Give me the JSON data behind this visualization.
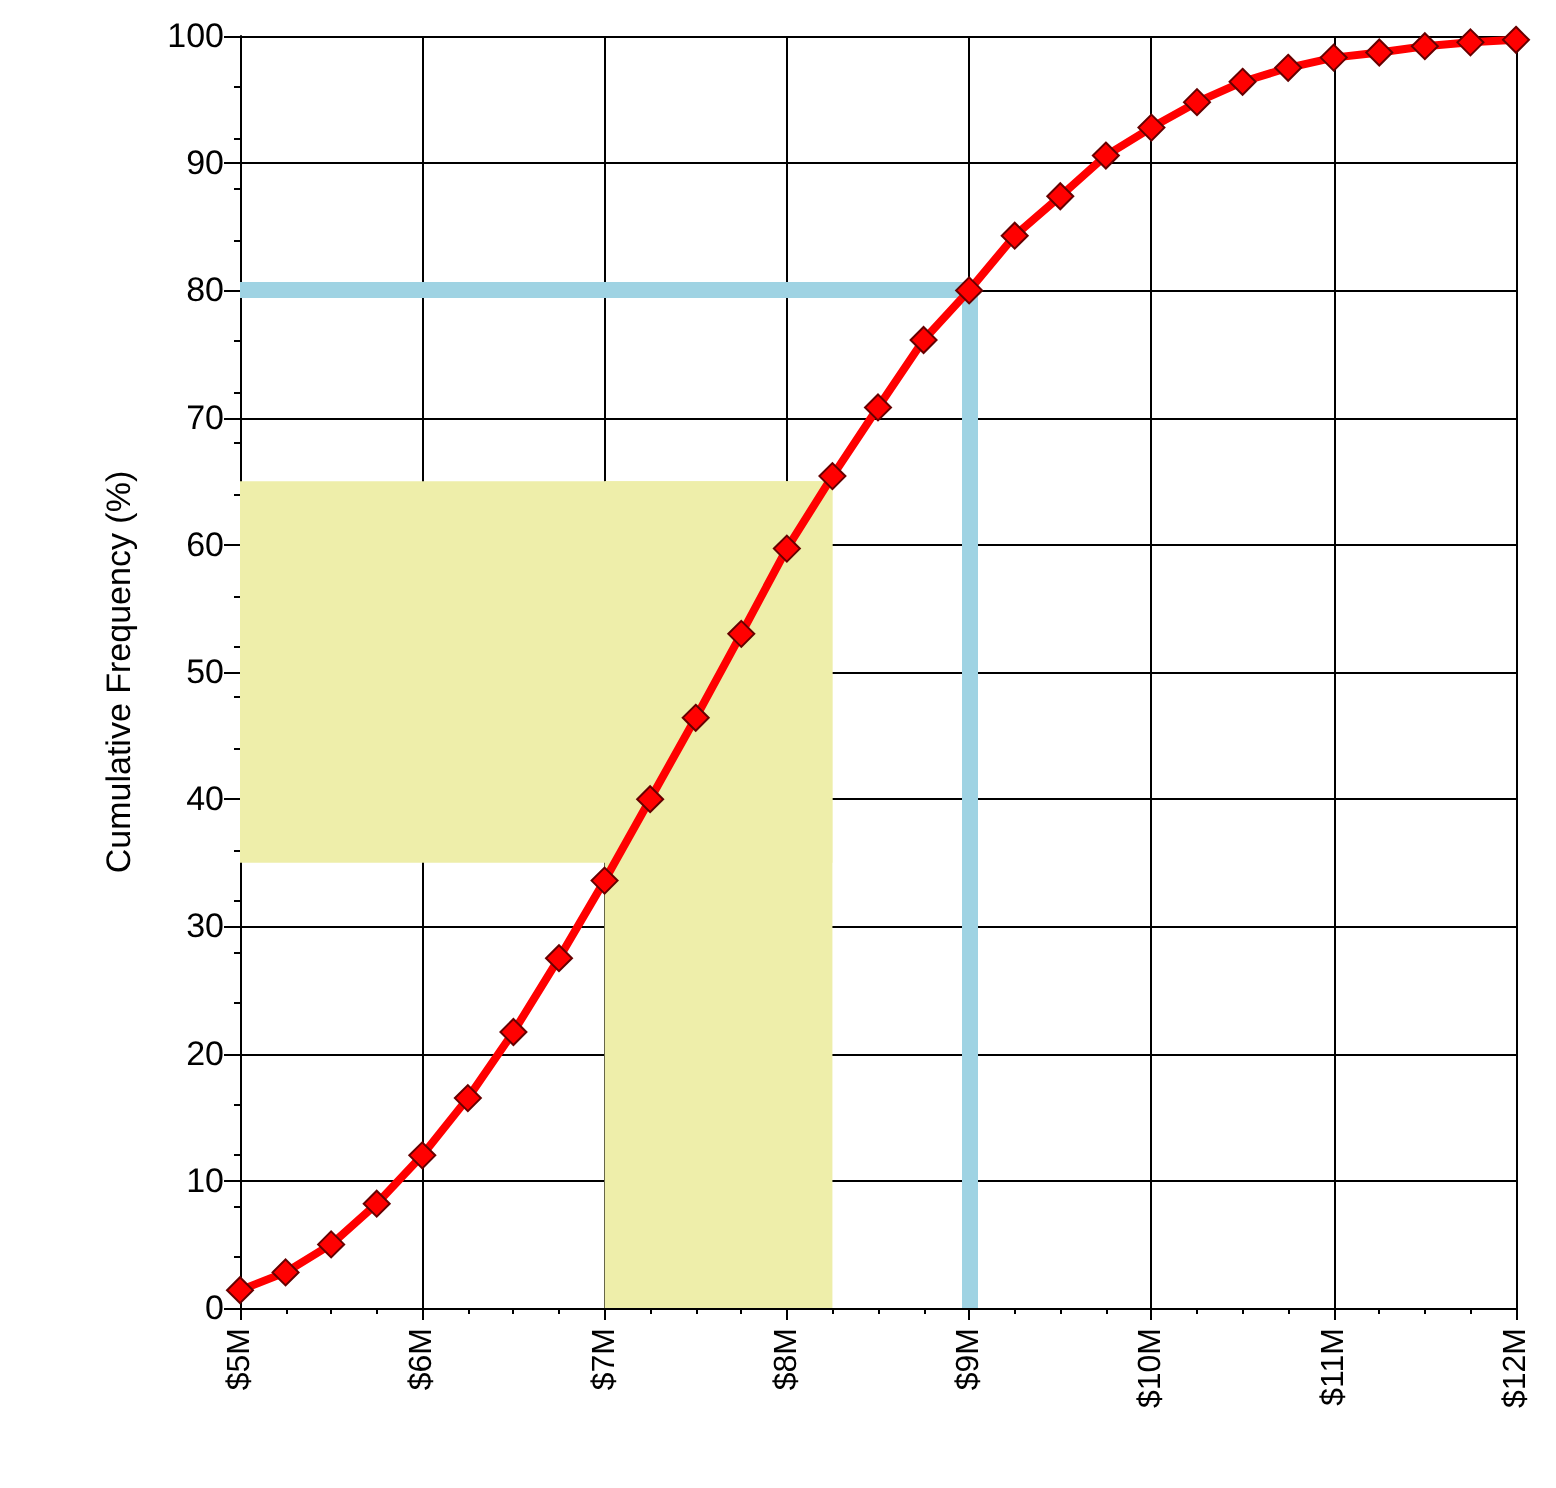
{
  "chart_data": {
    "type": "line",
    "ylabel": "Cumulative Frequency (%)",
    "x": [
      5,
      5.25,
      5.5,
      5.75,
      6,
      6.25,
      6.5,
      6.75,
      7,
      7.25,
      7.5,
      7.75,
      8,
      8.25,
      8.5,
      8.75,
      9,
      9.25,
      9.5,
      9.75,
      10,
      10.25,
      10.5,
      10.75,
      11,
      11.25,
      11.5,
      11.75,
      12
    ],
    "series": [
      {
        "color": "#ff0000",
        "values": [
          1.4,
          2.8,
          5.0,
          8.2,
          12.0,
          16.5,
          21.7,
          27.5,
          33.6,
          40.0,
          46.4,
          53.0,
          59.7,
          65.4,
          70.8,
          76.1,
          80.0,
          84.3,
          87.4,
          90.6,
          92.8,
          94.8,
          96.4,
          97.5,
          98.3,
          98.7,
          99.2,
          99.5,
          99.7
        ]
      }
    ],
    "xlim": [
      5,
      12
    ],
    "xticks": [
      {
        "value": 5,
        "label": "$5M"
      },
      {
        "value": 6,
        "label": "$6M"
      },
      {
        "value": 7,
        "label": "$7M"
      },
      {
        "value": 8,
        "label": "$8M"
      },
      {
        "value": 9,
        "label": "$9M"
      },
      {
        "value": 10,
        "label": "$10M"
      },
      {
        "value": 11,
        "label": "$11M"
      },
      {
        "value": 12,
        "label": "$12M"
      }
    ],
    "ylim": [
      0,
      100
    ],
    "yticks": [
      0,
      10,
      20,
      30,
      40,
      50,
      60,
      70,
      80,
      90,
      100
    ],
    "bands": [
      {
        "axis": "x",
        "from": 7,
        "to": 8.25,
        "color": "#eeeeaa"
      },
      {
        "axis": "y",
        "from": 35,
        "to": 65,
        "color": "#eeeeaa"
      }
    ],
    "ref_lines": [
      {
        "axis": "y",
        "value": 80,
        "color": "#9fd3e3"
      },
      {
        "axis": "x",
        "value": 9,
        "color": "#9fd3e3"
      }
    ],
    "grid": true,
    "marker": "diamond",
    "line_style": "solid"
  }
}
